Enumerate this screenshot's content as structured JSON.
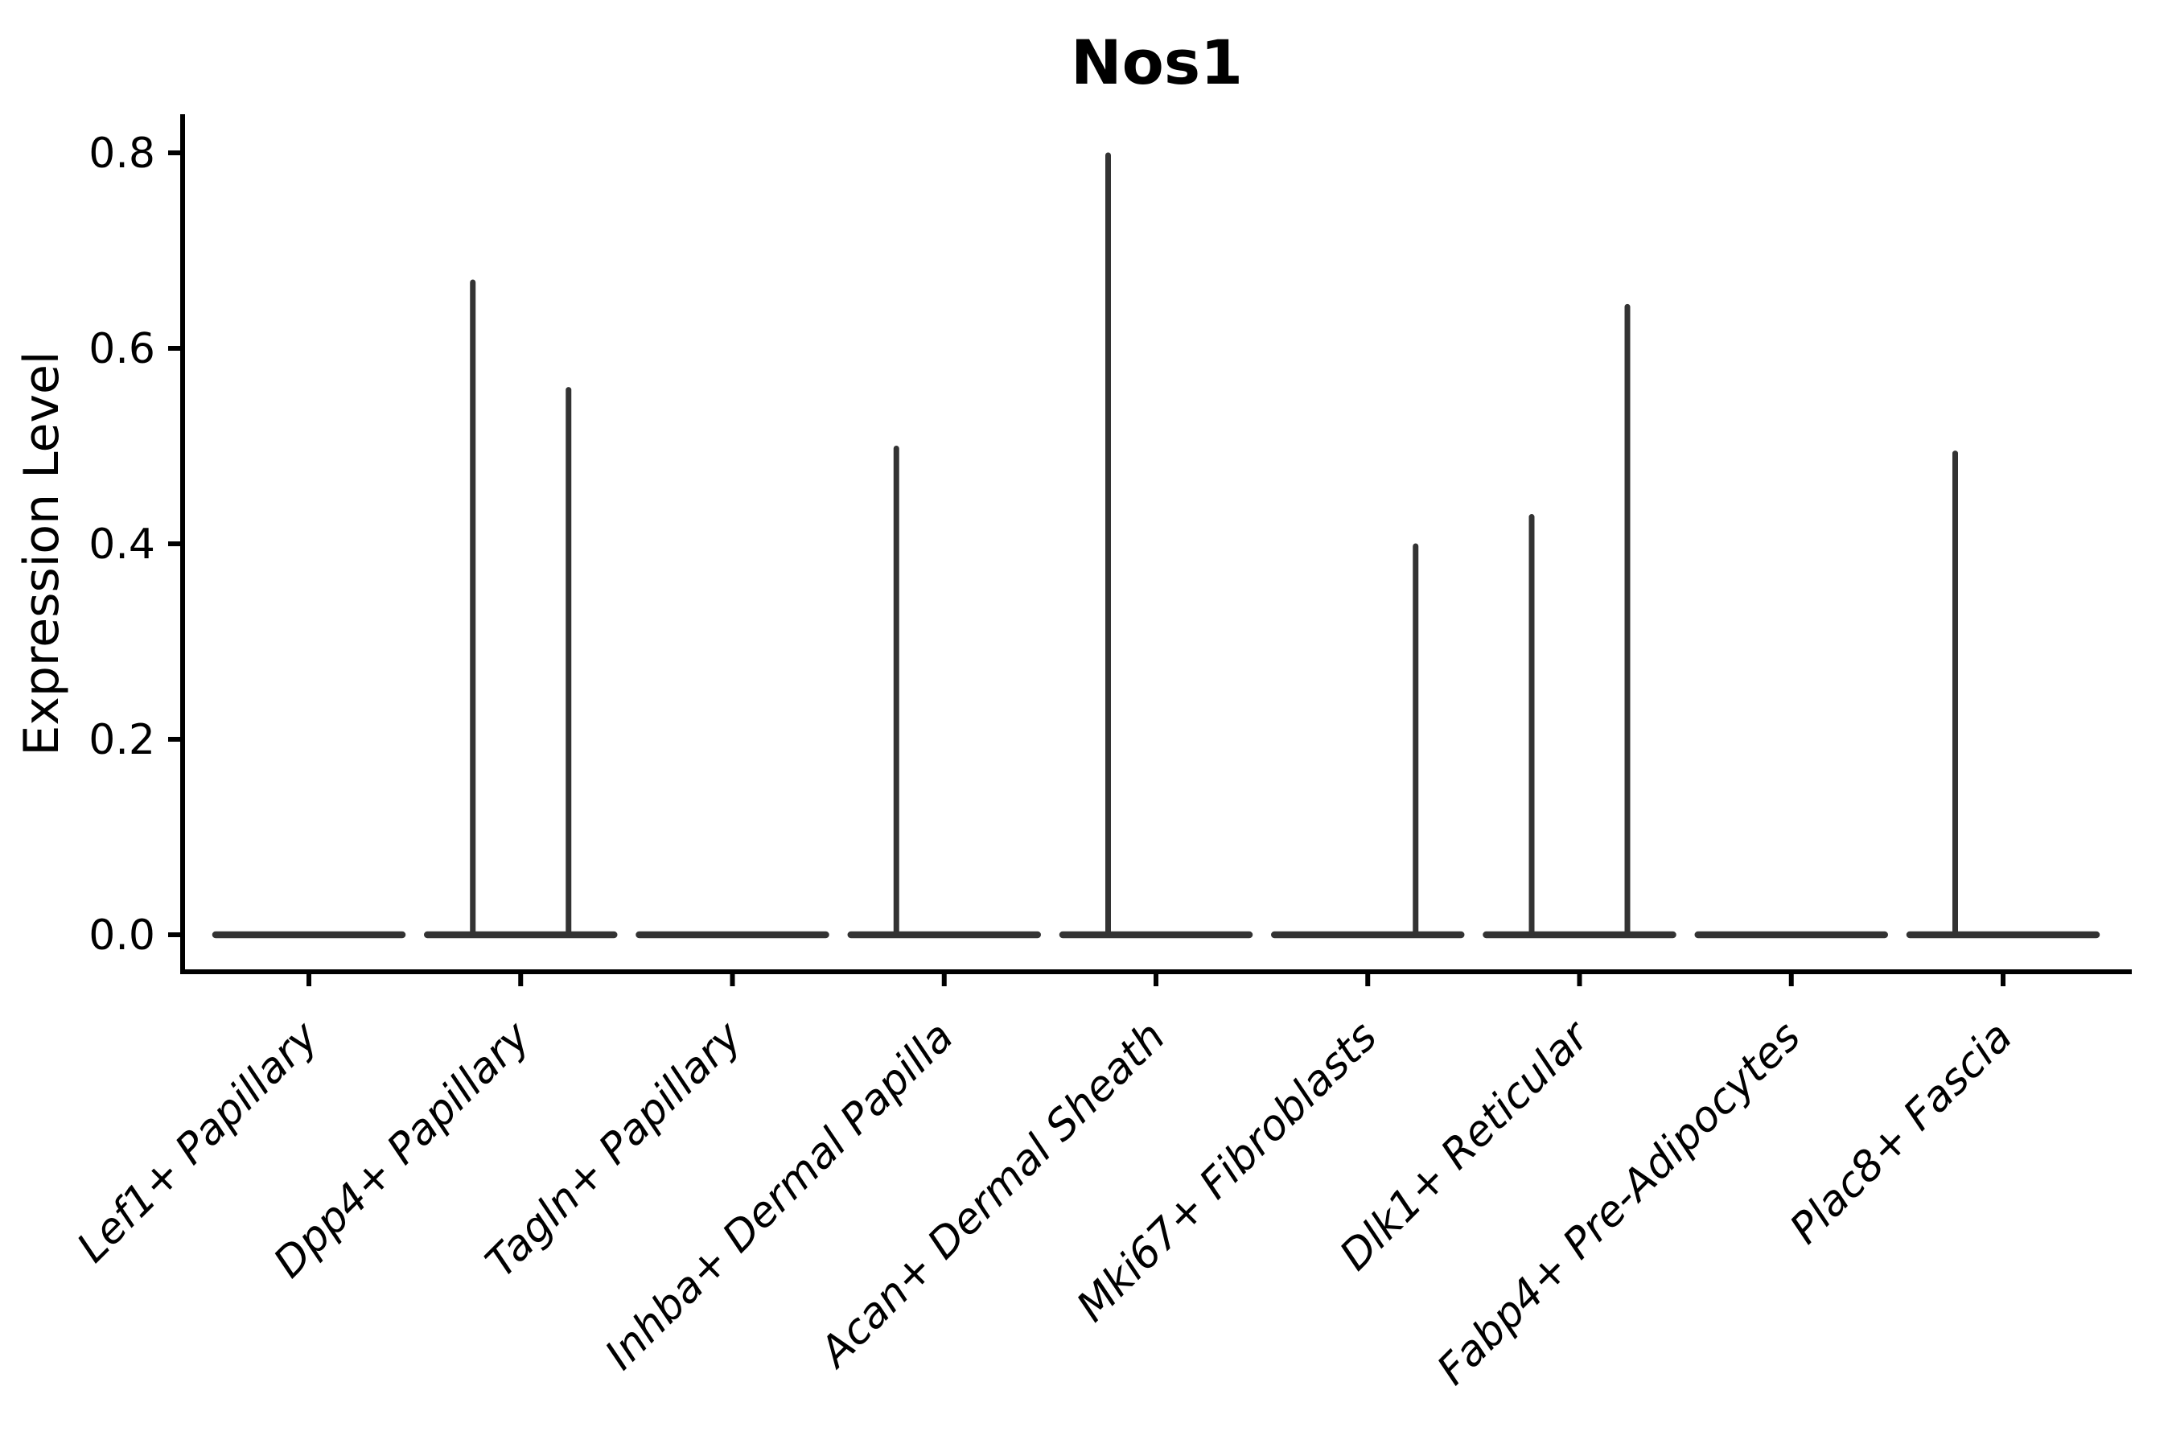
{
  "figure": {
    "title": "Nos1",
    "ylabel": "Expression Level"
  },
  "chart_data": {
    "type": "violin",
    "title": "Nos1",
    "xlabel": "",
    "ylabel": "Expression Level",
    "ylim": [
      0.0,
      0.84
    ],
    "yticks": [
      "0.0",
      "0.2",
      "0.4",
      "0.6",
      "0.8"
    ],
    "ytick_values": [
      0.0,
      0.2,
      0.4,
      0.6,
      0.8
    ],
    "grid": false,
    "legend": "none",
    "violin_color": "#333333",
    "axis_color": "#000000",
    "categories": [
      "Lef1+ Papillary",
      "Dpp4+ Papillary",
      "Tagln+ Papillary",
      "Inhba+ Dermal Papilla",
      "Acan+ Dermal Sheath",
      "Mki67+ Fibroblasts",
      "Dlk1+ Reticular",
      "Fabp4+ Pre-Adipocytes",
      "Plac8+ Fascia"
    ],
    "series": [
      {
        "category": "Lef1+ Papillary",
        "baseline_value": 0.0,
        "spikes": []
      },
      {
        "category": "Dpp4+ Papillary",
        "baseline_value": 0.0,
        "spikes": [
          {
            "side": "left",
            "max": 0.67
          },
          {
            "side": "right",
            "max": 0.56
          }
        ]
      },
      {
        "category": "Tagln+ Papillary",
        "baseline_value": 0.0,
        "spikes": []
      },
      {
        "category": "Inhba+ Dermal Papilla",
        "baseline_value": 0.0,
        "spikes": [
          {
            "side": "left",
            "max": 0.5
          }
        ]
      },
      {
        "category": "Acan+ Dermal Sheath",
        "baseline_value": 0.0,
        "spikes": [
          {
            "side": "left",
            "max": 0.8
          }
        ]
      },
      {
        "category": "Mki67+ Fibroblasts",
        "baseline_value": 0.0,
        "spikes": [
          {
            "side": "right",
            "max": 0.4
          }
        ]
      },
      {
        "category": "Dlk1+ Reticular",
        "baseline_value": 0.0,
        "spikes": [
          {
            "side": "left",
            "max": 0.43
          },
          {
            "side": "right",
            "max": 0.645
          }
        ]
      },
      {
        "category": "Fabp4+ Pre-Adipocytes",
        "baseline_value": 0.0,
        "spikes": []
      },
      {
        "category": "Plac8+ Fascia",
        "baseline_value": 0.0,
        "spikes": [
          {
            "side": "left",
            "max": 0.495
          }
        ]
      }
    ],
    "notes": "Violin plot; most density collapsed at 0 (flat baselines), thin spikes reach the listed max expression values."
  }
}
